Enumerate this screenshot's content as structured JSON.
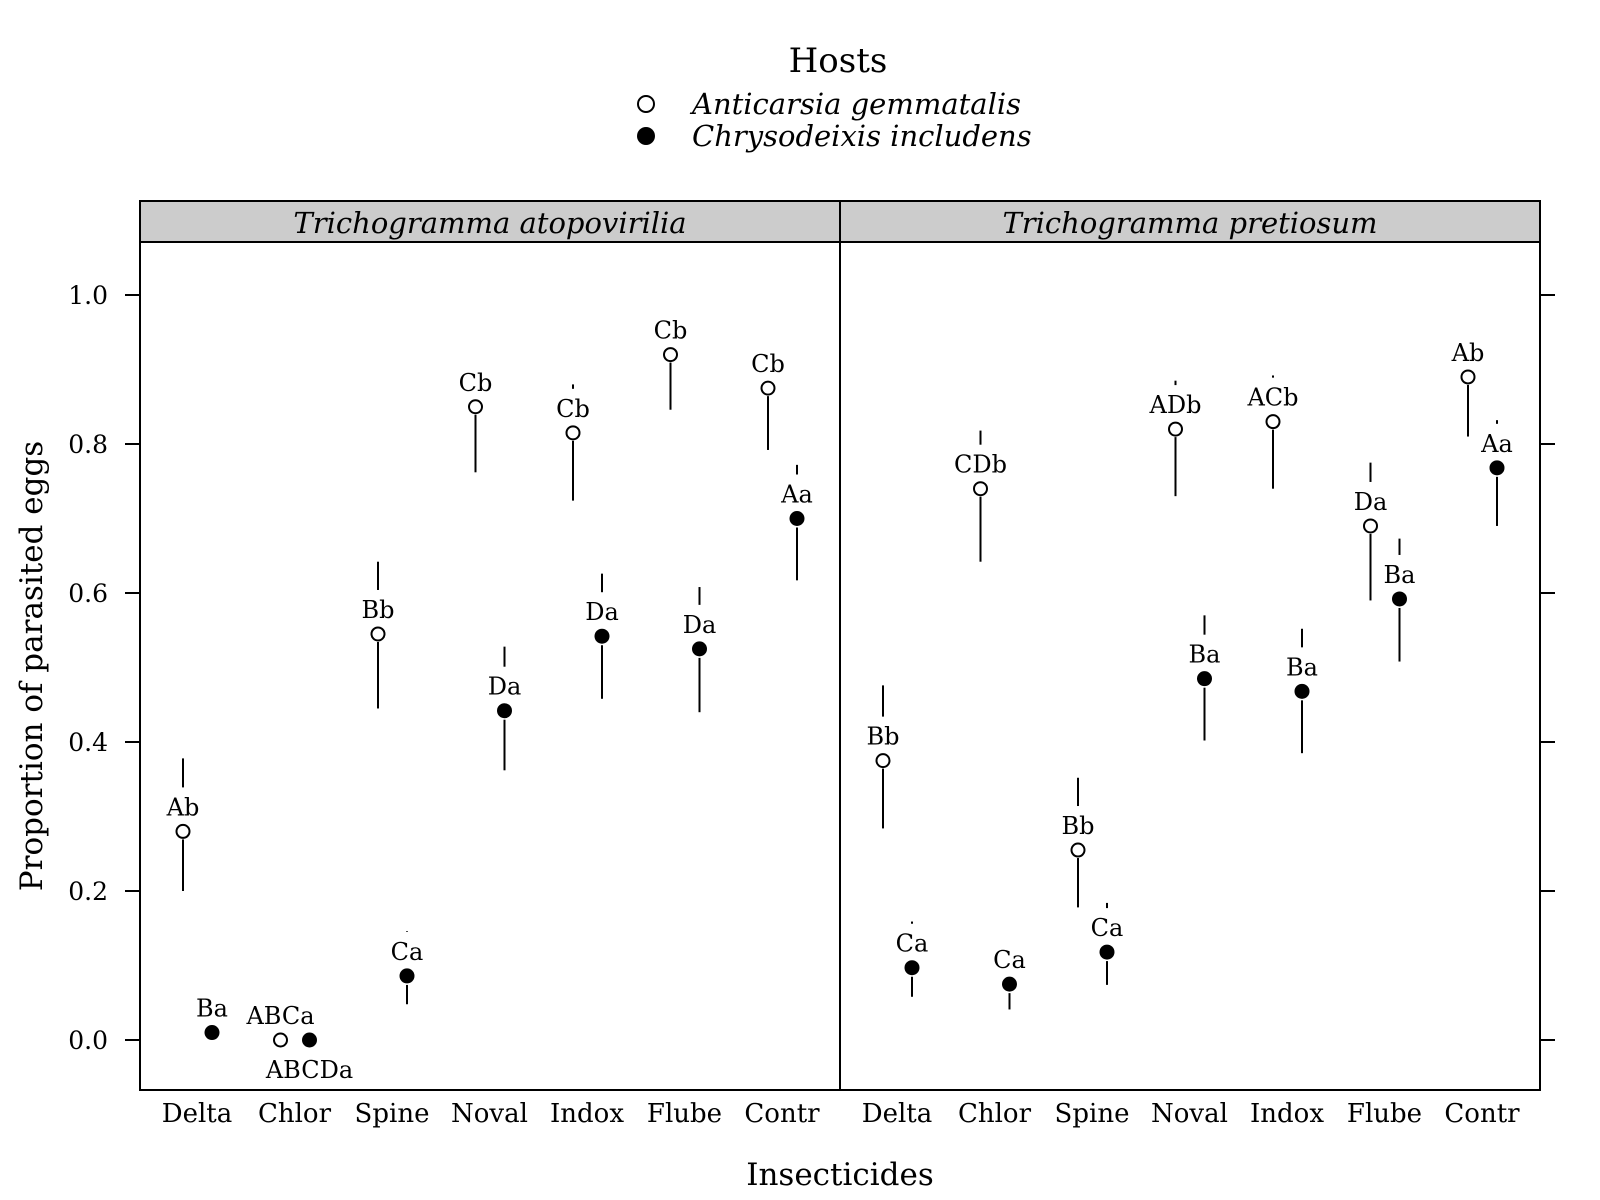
{
  "chart_data": {
    "type": "scatter",
    "legend": {
      "title": "Hosts",
      "placement": "top-center",
      "entries": [
        {
          "name": "Anticarsia gemmatalis",
          "symbol": "open-circle"
        },
        {
          "name": "Chrysodeixis includens",
          "symbol": "filled-circle"
        }
      ]
    },
    "xlabel": "Insecticides",
    "ylabel": "Proportion of parasited eggs",
    "categories": [
      "Delta",
      "Chlor",
      "Spine",
      "Noval",
      "Indox",
      "Flube",
      "Contr"
    ],
    "ylim": [
      -0.07,
      1.07
    ],
    "yticks": [
      "0.0",
      "0.2",
      "0.4",
      "0.6",
      "0.8",
      "1.0"
    ],
    "grid": false,
    "panels": [
      {
        "title": "Trichogramma atopovirilia",
        "series": [
          {
            "name": "Anticarsia gemmatalis",
            "values": [
              0.28,
              0.0,
              0.545,
              0.85,
              0.815,
              0.92,
              0.875
            ],
            "lower": [
              0.2,
              null,
              0.445,
              0.762,
              0.724,
              0.846,
              0.792
            ],
            "upper": [
              0.378,
              null,
              0.642,
              0.907,
              0.88,
              null,
              0.928
            ],
            "labels": [
              "Ab",
              "ABCa",
              "Bb",
              "Cb",
              "Cb",
              "Cb",
              "Cb"
            ]
          },
          {
            "name": "Chrysodeixis includens",
            "values": [
              0.01,
              0.0,
              0.086,
              0.442,
              0.542,
              0.525,
              0.7
            ],
            "lower": [
              null,
              null,
              0.048,
              0.362,
              0.458,
              0.44,
              0.617
            ],
            "upper": [
              null,
              null,
              0.146,
              0.528,
              0.626,
              0.608,
              0.772
            ],
            "labels": [
              "Ba",
              "ABCDa",
              "Ca",
              "Da",
              "Da",
              "Da",
              "Aa"
            ]
          }
        ]
      },
      {
        "title": "Trichogramma pretiosum",
        "series": [
          {
            "name": "Anticarsia gemmatalis",
            "values": [
              0.375,
              0.74,
              0.255,
              0.82,
              0.83,
              0.69,
              0.89
            ],
            "lower": [
              0.284,
              0.642,
              0.178,
              0.73,
              0.74,
              0.59,
              0.81
            ],
            "upper": [
              0.476,
              0.818,
              0.352,
              0.885,
              0.892,
              0.775,
              0.938
            ],
            "labels": [
              "Bb",
              "CDb",
              "Bb",
              "ADb",
              "ACb",
              "Da",
              "Ab"
            ]
          },
          {
            "name": "Chrysodeixis includens",
            "values": [
              0.097,
              0.075,
              0.118,
              0.485,
              0.468,
              0.592,
              0.768
            ],
            "lower": [
              0.058,
              0.041,
              0.074,
              0.402,
              0.385,
              0.508,
              0.69
            ],
            "upper": [
              0.159,
              0.133,
              0.184,
              0.57,
              0.552,
              0.673,
              0.832
            ],
            "labels": [
              "Ca",
              "Ca",
              "Ca",
              "Ba",
              "Ba",
              "Ba",
              "Aa"
            ]
          }
        ]
      }
    ]
  }
}
